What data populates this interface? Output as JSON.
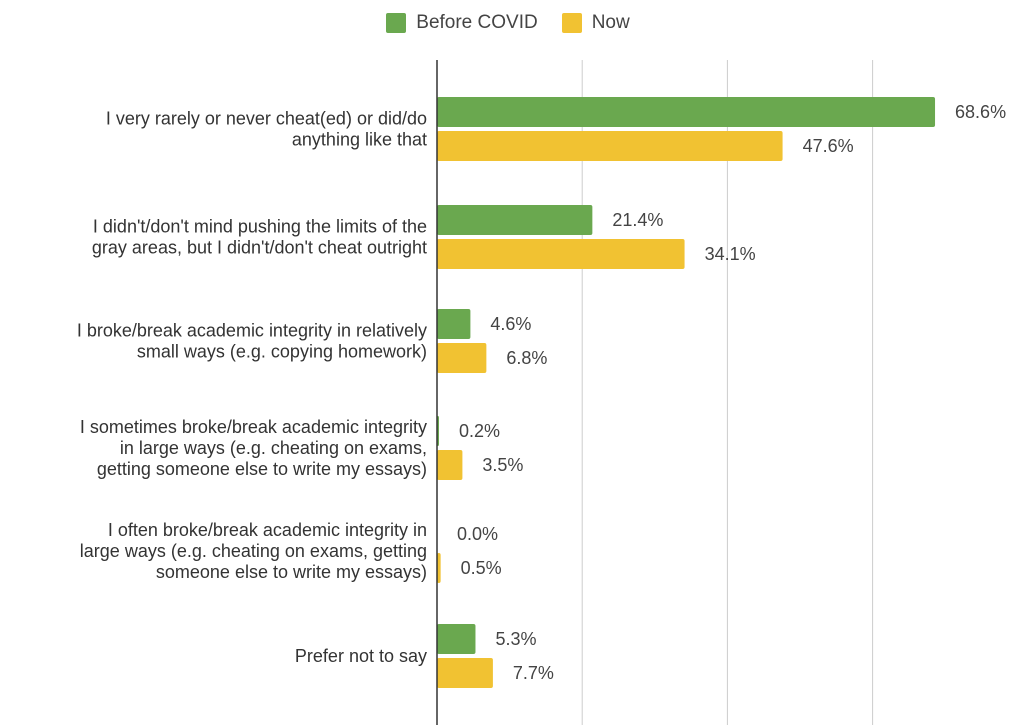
{
  "chart_data": {
    "type": "bar",
    "orientation": "horizontal",
    "categories": [
      [
        "I very rarely or never cheat(ed) or did/do",
        "anything like that"
      ],
      [
        "I didn't/don't mind pushing the limits of the",
        "gray areas, but I didn't/don't cheat outright"
      ],
      [
        "I broke/break academic integrity in relatively",
        "small ways (e.g. copying homework)"
      ],
      [
        "I sometimes broke/break academic integrity",
        "in large ways (e.g. cheating on exams,",
        "getting someone else to write my essays)"
      ],
      [
        "I often broke/break academic integrity in",
        "large ways (e.g. cheating on exams, getting",
        "someone else to write my essays)"
      ],
      [
        "Prefer not to say"
      ]
    ],
    "series": [
      {
        "name": "Before COVID",
        "color": "#6aa84f",
        "values": [
          68.6,
          21.4,
          4.6,
          0.2,
          0.0,
          5.3
        ],
        "labels": [
          "68.6%",
          "21.4%",
          "4.6%",
          "0.2%",
          "0.0%",
          "5.3%"
        ]
      },
      {
        "name": "Now",
        "color": "#f1c232",
        "values": [
          47.6,
          34.1,
          6.8,
          3.5,
          0.5,
          7.7
        ],
        "labels": [
          "47.6%",
          "34.1%",
          "6.8%",
          "3.5%",
          "0.5%",
          "7.7%"
        ]
      }
    ],
    "xlim": [
      0,
      80
    ],
    "grid": true,
    "legend": "top-center"
  }
}
